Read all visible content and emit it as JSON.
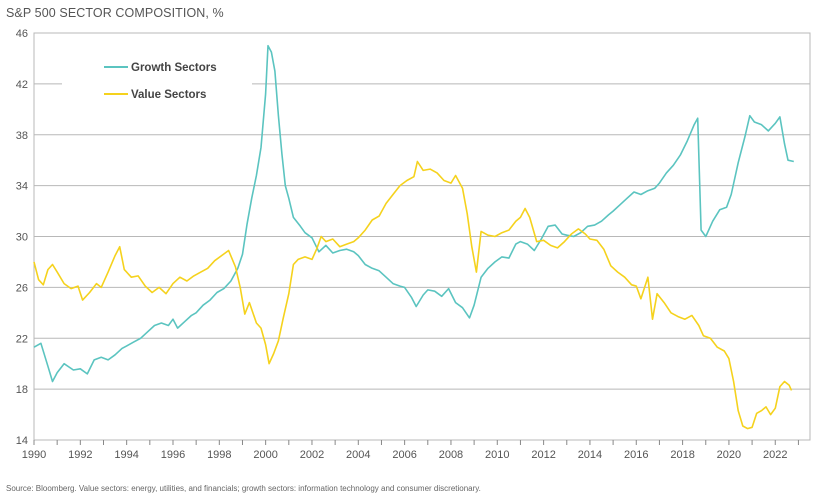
{
  "chart_data": {
    "type": "line",
    "title": "S&P 500 SECTOR COMPOSITION, %",
    "source": "Source: Bloomberg. Value sectors: energy, utilities, and financials; growth sectors: information technology and consumer discretionary.",
    "xlim": [
      1990,
      2023.5
    ],
    "ylim": [
      14,
      46
    ],
    "x_ticks": [
      "1990",
      "1992",
      "1994",
      "1996",
      "1998",
      "2000",
      "2002",
      "2004",
      "2006",
      "2008",
      "2010",
      "2012",
      "2014",
      "2016",
      "2018",
      "2020",
      "2022"
    ],
    "y_ticks": [
      "14",
      "18",
      "22",
      "26",
      "30",
      "34",
      "38",
      "42",
      "46"
    ],
    "grid": "horizontal",
    "legend_position": "top-left",
    "series": [
      {
        "name": "Growth Sectors",
        "color": "#5bc4c0",
        "points": [
          [
            1990.0,
            21.3
          ],
          [
            1990.3,
            21.6
          ],
          [
            1990.6,
            19.8
          ],
          [
            1990.8,
            18.6
          ],
          [
            1991.0,
            19.3
          ],
          [
            1991.3,
            20.0
          ],
          [
            1991.7,
            19.5
          ],
          [
            1992.0,
            19.6
          ],
          [
            1992.3,
            19.2
          ],
          [
            1992.6,
            20.3
          ],
          [
            1992.9,
            20.5
          ],
          [
            1993.2,
            20.3
          ],
          [
            1993.5,
            20.7
          ],
          [
            1993.8,
            21.2
          ],
          [
            1994.0,
            21.4
          ],
          [
            1994.3,
            21.7
          ],
          [
            1994.6,
            22.0
          ],
          [
            1994.9,
            22.5
          ],
          [
            1995.2,
            23.0
          ],
          [
            1995.5,
            23.2
          ],
          [
            1995.8,
            23.0
          ],
          [
            1996.0,
            23.5
          ],
          [
            1996.2,
            22.8
          ],
          [
            1996.5,
            23.3
          ],
          [
            1996.8,
            23.8
          ],
          [
            1997.0,
            24.0
          ],
          [
            1997.3,
            24.6
          ],
          [
            1997.6,
            25.0
          ],
          [
            1997.9,
            25.6
          ],
          [
            1998.2,
            25.9
          ],
          [
            1998.5,
            26.5
          ],
          [
            1998.8,
            27.5
          ],
          [
            1999.0,
            28.6
          ],
          [
            1999.2,
            31.0
          ],
          [
            1999.4,
            33.0
          ],
          [
            1999.6,
            34.8
          ],
          [
            1999.8,
            37.0
          ],
          [
            2000.0,
            41.2
          ],
          [
            2000.1,
            45.0
          ],
          [
            2000.25,
            44.5
          ],
          [
            2000.4,
            43.0
          ],
          [
            2000.55,
            39.5
          ],
          [
            2000.7,
            36.5
          ],
          [
            2000.85,
            34.0
          ],
          [
            2001.0,
            33.0
          ],
          [
            2001.2,
            31.5
          ],
          [
            2001.5,
            30.8
          ],
          [
            2001.7,
            30.3
          ],
          [
            2002.0,
            29.9
          ],
          [
            2002.3,
            28.8
          ],
          [
            2002.6,
            29.3
          ],
          [
            2002.9,
            28.7
          ],
          [
            2003.2,
            28.9
          ],
          [
            2003.5,
            29.0
          ],
          [
            2003.8,
            28.8
          ],
          [
            2004.0,
            28.5
          ],
          [
            2004.3,
            27.8
          ],
          [
            2004.6,
            27.5
          ],
          [
            2004.9,
            27.3
          ],
          [
            2005.2,
            26.8
          ],
          [
            2005.5,
            26.3
          ],
          [
            2005.8,
            26.1
          ],
          [
            2006.0,
            26.0
          ],
          [
            2006.3,
            25.2
          ],
          [
            2006.5,
            24.5
          ],
          [
            2006.8,
            25.4
          ],
          [
            2007.0,
            25.8
          ],
          [
            2007.3,
            25.7
          ],
          [
            2007.6,
            25.3
          ],
          [
            2007.9,
            25.9
          ],
          [
            2008.2,
            24.8
          ],
          [
            2008.5,
            24.4
          ],
          [
            2008.8,
            23.6
          ],
          [
            2009.0,
            24.6
          ],
          [
            2009.3,
            26.8
          ],
          [
            2009.6,
            27.5
          ],
          [
            2009.9,
            28.0
          ],
          [
            2010.2,
            28.4
          ],
          [
            2010.5,
            28.3
          ],
          [
            2010.8,
            29.4
          ],
          [
            2011.0,
            29.6
          ],
          [
            2011.3,
            29.4
          ],
          [
            2011.6,
            28.9
          ],
          [
            2011.9,
            29.8
          ],
          [
            2012.2,
            30.8
          ],
          [
            2012.5,
            30.9
          ],
          [
            2012.8,
            30.2
          ],
          [
            2013.0,
            30.1
          ],
          [
            2013.3,
            30.0
          ],
          [
            2013.6,
            30.3
          ],
          [
            2013.9,
            30.8
          ],
          [
            2014.2,
            30.9
          ],
          [
            2014.5,
            31.2
          ],
          [
            2014.8,
            31.7
          ],
          [
            2015.0,
            32.0
          ],
          [
            2015.3,
            32.5
          ],
          [
            2015.6,
            33.0
          ],
          [
            2015.9,
            33.5
          ],
          [
            2016.2,
            33.3
          ],
          [
            2016.5,
            33.6
          ],
          [
            2016.8,
            33.8
          ],
          [
            2017.0,
            34.2
          ],
          [
            2017.3,
            35.0
          ],
          [
            2017.6,
            35.6
          ],
          [
            2017.9,
            36.4
          ],
          [
            2018.2,
            37.5
          ],
          [
            2018.5,
            38.8
          ],
          [
            2018.65,
            39.3
          ],
          [
            2018.8,
            30.5
          ],
          [
            2019.0,
            30.0
          ],
          [
            2019.3,
            31.2
          ],
          [
            2019.6,
            32.1
          ],
          [
            2019.9,
            32.3
          ],
          [
            2020.1,
            33.3
          ],
          [
            2020.4,
            35.8
          ],
          [
            2020.7,
            37.9
          ],
          [
            2020.9,
            39.5
          ],
          [
            2021.1,
            39.0
          ],
          [
            2021.4,
            38.8
          ],
          [
            2021.7,
            38.3
          ],
          [
            2022.0,
            38.9
          ],
          [
            2022.2,
            39.4
          ],
          [
            2022.4,
            37.3
          ],
          [
            2022.55,
            36.0
          ],
          [
            2022.8,
            35.9
          ]
        ]
      },
      {
        "name": "Value Sectors",
        "color": "#f5d21d",
        "points": [
          [
            1990.0,
            28.0
          ],
          [
            1990.2,
            26.6
          ],
          [
            1990.4,
            26.2
          ],
          [
            1990.6,
            27.4
          ],
          [
            1990.8,
            27.8
          ],
          [
            1991.0,
            27.2
          ],
          [
            1991.3,
            26.3
          ],
          [
            1991.6,
            25.9
          ],
          [
            1991.9,
            26.1
          ],
          [
            1992.1,
            25.0
          ],
          [
            1992.4,
            25.6
          ],
          [
            1992.7,
            26.3
          ],
          [
            1992.9,
            26.0
          ],
          [
            1993.2,
            27.2
          ],
          [
            1993.5,
            28.5
          ],
          [
            1993.7,
            29.2
          ],
          [
            1993.9,
            27.4
          ],
          [
            1994.2,
            26.8
          ],
          [
            1994.5,
            26.9
          ],
          [
            1994.8,
            26.1
          ],
          [
            1995.1,
            25.6
          ],
          [
            1995.4,
            26.0
          ],
          [
            1995.7,
            25.5
          ],
          [
            1996.0,
            26.3
          ],
          [
            1996.3,
            26.8
          ],
          [
            1996.6,
            26.5
          ],
          [
            1996.9,
            26.9
          ],
          [
            1997.2,
            27.2
          ],
          [
            1997.5,
            27.5
          ],
          [
            1997.8,
            28.1
          ],
          [
            1998.1,
            28.5
          ],
          [
            1998.4,
            28.9
          ],
          [
            1998.7,
            27.6
          ],
          [
            1998.9,
            26.0
          ],
          [
            1999.1,
            23.9
          ],
          [
            1999.3,
            24.8
          ],
          [
            1999.6,
            23.2
          ],
          [
            1999.8,
            22.8
          ],
          [
            2000.0,
            21.5
          ],
          [
            2000.15,
            20.0
          ],
          [
            2000.35,
            20.8
          ],
          [
            2000.55,
            21.8
          ],
          [
            2000.75,
            23.5
          ],
          [
            2001.0,
            25.5
          ],
          [
            2001.2,
            27.8
          ],
          [
            2001.4,
            28.2
          ],
          [
            2001.7,
            28.4
          ],
          [
            2002.0,
            28.2
          ],
          [
            2002.2,
            29.0
          ],
          [
            2002.4,
            30.0
          ],
          [
            2002.6,
            29.6
          ],
          [
            2002.9,
            29.8
          ],
          [
            2003.2,
            29.2
          ],
          [
            2003.5,
            29.4
          ],
          [
            2003.8,
            29.6
          ],
          [
            2004.0,
            29.9
          ],
          [
            2004.3,
            30.5
          ],
          [
            2004.6,
            31.3
          ],
          [
            2004.9,
            31.6
          ],
          [
            2005.2,
            32.6
          ],
          [
            2005.5,
            33.3
          ],
          [
            2005.8,
            34.0
          ],
          [
            2006.1,
            34.4
          ],
          [
            2006.4,
            34.7
          ],
          [
            2006.55,
            35.9
          ],
          [
            2006.8,
            35.2
          ],
          [
            2007.1,
            35.3
          ],
          [
            2007.4,
            35.0
          ],
          [
            2007.7,
            34.4
          ],
          [
            2008.0,
            34.2
          ],
          [
            2008.2,
            34.8
          ],
          [
            2008.5,
            33.8
          ],
          [
            2008.7,
            31.8
          ],
          [
            2008.9,
            29.2
          ],
          [
            2009.1,
            27.2
          ],
          [
            2009.3,
            30.4
          ],
          [
            2009.6,
            30.1
          ],
          [
            2009.9,
            30.0
          ],
          [
            2010.2,
            30.3
          ],
          [
            2010.5,
            30.5
          ],
          [
            2010.8,
            31.2
          ],
          [
            2011.0,
            31.5
          ],
          [
            2011.2,
            32.2
          ],
          [
            2011.4,
            31.5
          ],
          [
            2011.7,
            29.6
          ],
          [
            2012.0,
            29.7
          ],
          [
            2012.3,
            29.3
          ],
          [
            2012.6,
            29.1
          ],
          [
            2012.9,
            29.6
          ],
          [
            2013.2,
            30.2
          ],
          [
            2013.5,
            30.6
          ],
          [
            2013.8,
            30.2
          ],
          [
            2014.0,
            29.8
          ],
          [
            2014.3,
            29.7
          ],
          [
            2014.6,
            29.0
          ],
          [
            2014.9,
            27.7
          ],
          [
            2015.2,
            27.2
          ],
          [
            2015.5,
            26.8
          ],
          [
            2015.8,
            26.2
          ],
          [
            2016.0,
            26.1
          ],
          [
            2016.2,
            25.1
          ],
          [
            2016.5,
            26.8
          ],
          [
            2016.7,
            23.5
          ],
          [
            2016.9,
            25.5
          ],
          [
            2017.2,
            24.8
          ],
          [
            2017.5,
            24.0
          ],
          [
            2017.8,
            23.7
          ],
          [
            2018.1,
            23.5
          ],
          [
            2018.4,
            23.8
          ],
          [
            2018.7,
            23.0
          ],
          [
            2018.9,
            22.2
          ],
          [
            2019.2,
            22.0
          ],
          [
            2019.5,
            21.3
          ],
          [
            2019.8,
            21.0
          ],
          [
            2020.0,
            20.4
          ],
          [
            2020.2,
            18.6
          ],
          [
            2020.4,
            16.3
          ],
          [
            2020.6,
            15.1
          ],
          [
            2020.8,
            14.9
          ],
          [
            2021.0,
            15.0
          ],
          [
            2021.2,
            16.1
          ],
          [
            2021.4,
            16.3
          ],
          [
            2021.6,
            16.6
          ],
          [
            2021.8,
            16.0
          ],
          [
            2022.0,
            16.5
          ],
          [
            2022.2,
            18.2
          ],
          [
            2022.4,
            18.6
          ],
          [
            2022.6,
            18.3
          ],
          [
            2022.7,
            17.9
          ]
        ]
      }
    ]
  }
}
